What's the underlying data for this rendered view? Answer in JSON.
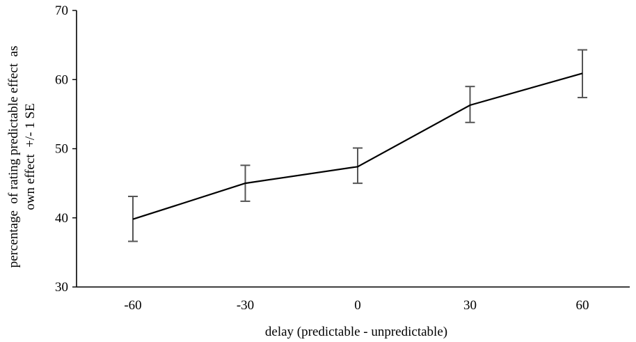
{
  "chart_data": {
    "type": "line",
    "title": "",
    "xlabel": "delay (predictable - unpredictable)",
    "ylabel_lines": [
      "percentage  of rating predictable effect  as",
      "own effect  +/- 1 SE"
    ],
    "categories": [
      "-60",
      "-30",
      "0",
      "30",
      "60"
    ],
    "series": [
      {
        "values": [
          39.8,
          45.0,
          47.4,
          56.3,
          60.9
        ],
        "error_low": [
          36.6,
          42.4,
          45.0,
          53.8,
          57.4
        ],
        "error_high": [
          43.1,
          47.6,
          50.1,
          59.0,
          64.3
        ]
      }
    ],
    "ylim": [
      30,
      70
    ],
    "yticks": [
      30,
      40,
      50,
      60,
      70
    ],
    "grid": false,
    "legend": "none",
    "colors": {
      "line": "#000000",
      "error_bar": "#555555",
      "axis": "#000000"
    }
  }
}
